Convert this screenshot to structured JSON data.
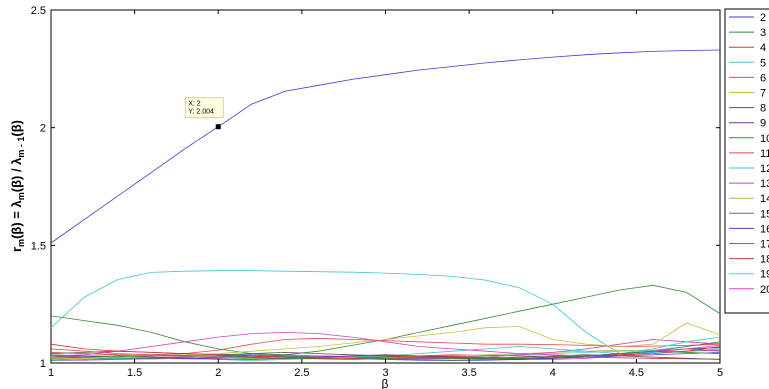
{
  "chart_data": {
    "type": "line",
    "title": "",
    "xlabel": "β",
    "ylabel": {
      "base": "r",
      "sub_m": "m",
      "mid": "(β) = λ",
      "sub_m2": "m",
      "mid2": "(β) / λ",
      "sub_m1": "m - 1",
      "tail": "(β)"
    },
    "xlim": [
      1,
      5
    ],
    "ylim": [
      1,
      2.5
    ],
    "xticks": [
      "1",
      "1.5",
      "2",
      "2.5",
      "3",
      "3.5",
      "4",
      "4.5",
      "5"
    ],
    "yticks": [
      "1",
      "1.5",
      "2",
      "2.5"
    ],
    "grid": false,
    "legend_position": "right",
    "datatip": {
      "x_text": "X: 2",
      "y_text": "Y: 2.004",
      "x": 2,
      "y": 2.004
    },
    "x": [
      1,
      1.2,
      1.4,
      1.6,
      1.8,
      2,
      2.2,
      2.4,
      2.6,
      2.8,
      3,
      3.2,
      3.4,
      3.6,
      3.8,
      4,
      4.2,
      4.4,
      4.6,
      4.8,
      5
    ],
    "series": [
      {
        "name": "2",
        "color": "#3b3bd6",
        "values": [
          1.51,
          1.61,
          1.71,
          1.81,
          1.91,
          2.004,
          2.1,
          2.155,
          2.18,
          2.205,
          2.225,
          2.245,
          2.26,
          2.275,
          2.288,
          2.3,
          2.31,
          2.318,
          2.324,
          2.328,
          2.33
        ]
      },
      {
        "name": "3",
        "color": "#2e8b2e",
        "values": [
          1.035,
          1.03,
          1.028,
          1.03,
          1.032,
          1.03,
          1.025,
          1.02,
          1.018,
          1.015,
          1.02,
          1.022,
          1.02,
          1.018,
          1.02,
          1.025,
          1.03,
          1.04,
          1.05,
          1.045,
          1.04
        ]
      },
      {
        "name": "4",
        "color": "#e03030",
        "values": [
          1.08,
          1.06,
          1.05,
          1.045,
          1.04,
          1.035,
          1.03,
          1.025,
          1.02,
          1.02,
          1.025,
          1.03,
          1.028,
          1.025,
          1.02,
          1.025,
          1.03,
          1.035,
          1.04,
          1.05,
          1.07
        ]
      },
      {
        "name": "5",
        "color": "#3cc6d8",
        "values": [
          1.15,
          1.28,
          1.355,
          1.385,
          1.39,
          1.392,
          1.392,
          1.39,
          1.388,
          1.386,
          1.382,
          1.376,
          1.368,
          1.352,
          1.32,
          1.25,
          1.13,
          1.04,
          1.06,
          1.09,
          1.11
        ]
      },
      {
        "name": "6",
        "color": "#d040c8",
        "values": [
          1.03,
          1.035,
          1.05,
          1.07,
          1.09,
          1.11,
          1.125,
          1.13,
          1.125,
          1.11,
          1.09,
          1.07,
          1.06,
          1.05,
          1.04,
          1.035,
          1.03,
          1.04,
          1.05,
          1.06,
          1.05
        ]
      },
      {
        "name": "7",
        "color": "#c8c040",
        "values": [
          1.02,
          1.02,
          1.025,
          1.03,
          1.035,
          1.04,
          1.05,
          1.06,
          1.07,
          1.085,
          1.1,
          1.115,
          1.13,
          1.15,
          1.155,
          1.1,
          1.08,
          1.07,
          1.08,
          1.17,
          1.12
        ]
      },
      {
        "name": "8",
        "color": "#555555",
        "values": [
          1.04,
          1.045,
          1.05,
          1.045,
          1.04,
          1.035,
          1.04,
          1.045,
          1.04,
          1.035,
          1.03,
          1.028,
          1.025,
          1.02,
          1.025,
          1.03,
          1.035,
          1.03,
          1.025,
          1.02,
          1.015
        ]
      },
      {
        "name": "9",
        "color": "#7030a0",
        "values": [
          1.02,
          1.025,
          1.03,
          1.025,
          1.02,
          1.018,
          1.015,
          1.02,
          1.025,
          1.03,
          1.035,
          1.03,
          1.025,
          1.02,
          1.015,
          1.02,
          1.03,
          1.04,
          1.05,
          1.06,
          1.065
        ]
      },
      {
        "name": "10",
        "color": "#3a8a3a",
        "values": [
          1.2,
          1.18,
          1.16,
          1.13,
          1.09,
          1.06,
          1.04,
          1.035,
          1.05,
          1.075,
          1.1,
          1.13,
          1.16,
          1.19,
          1.22,
          1.25,
          1.28,
          1.31,
          1.33,
          1.3,
          1.21
        ]
      },
      {
        "name": "11",
        "color": "#e84848",
        "values": [
          1.06,
          1.05,
          1.04,
          1.035,
          1.04,
          1.055,
          1.08,
          1.1,
          1.105,
          1.1,
          1.095,
          1.09,
          1.085,
          1.08,
          1.08,
          1.078,
          1.075,
          1.07,
          1.072,
          1.075,
          1.08
        ]
      },
      {
        "name": "12",
        "color": "#40c0d0",
        "values": [
          1.01,
          1.015,
          1.02,
          1.025,
          1.02,
          1.015,
          1.01,
          1.015,
          1.02,
          1.025,
          1.03,
          1.04,
          1.05,
          1.06,
          1.07,
          1.06,
          1.05,
          1.04,
          1.045,
          1.05,
          1.06
        ]
      },
      {
        "name": "13",
        "color": "#c048b8",
        "values": [
          1.025,
          1.03,
          1.028,
          1.024,
          1.02,
          1.025,
          1.03,
          1.035,
          1.03,
          1.025,
          1.02,
          1.018,
          1.02,
          1.025,
          1.035,
          1.045,
          1.06,
          1.08,
          1.1,
          1.09,
          1.08
        ]
      },
      {
        "name": "14",
        "color": "#b8b848",
        "values": [
          1.015,
          1.02,
          1.03,
          1.035,
          1.03,
          1.025,
          1.02,
          1.018,
          1.02,
          1.022,
          1.025,
          1.028,
          1.03,
          1.035,
          1.04,
          1.045,
          1.05,
          1.055,
          1.05,
          1.045,
          1.04
        ]
      },
      {
        "name": "15",
        "color": "#707070",
        "values": [
          1.03,
          1.025,
          1.02,
          1.018,
          1.02,
          1.025,
          1.03,
          1.028,
          1.025,
          1.02,
          1.018,
          1.015,
          1.012,
          1.015,
          1.02,
          1.025,
          1.03,
          1.04,
          1.045,
          1.05,
          1.055
        ]
      },
      {
        "name": "16",
        "color": "#4848e0",
        "values": [
          1.012,
          1.015,
          1.018,
          1.02,
          1.025,
          1.03,
          1.035,
          1.03,
          1.025,
          1.02,
          1.015,
          1.012,
          1.01,
          1.012,
          1.015,
          1.02,
          1.025,
          1.03,
          1.035,
          1.04,
          1.045
        ]
      },
      {
        "name": "17",
        "color": "#2e9a3e",
        "values": [
          1.018,
          1.02,
          1.022,
          1.02,
          1.018,
          1.016,
          1.018,
          1.02,
          1.025,
          1.03,
          1.028,
          1.025,
          1.022,
          1.02,
          1.018,
          1.02,
          1.025,
          1.035,
          1.05,
          1.07,
          1.09
        ]
      },
      {
        "name": "18",
        "color": "#d83838",
        "values": [
          1.045,
          1.04,
          1.035,
          1.03,
          1.028,
          1.025,
          1.022,
          1.02,
          1.02,
          1.022,
          1.025,
          1.03,
          1.035,
          1.032,
          1.03,
          1.028,
          1.025,
          1.022,
          1.02,
          1.018,
          1.016
        ]
      },
      {
        "name": "19",
        "color": "#48d0e0",
        "values": [
          1.022,
          1.025,
          1.03,
          1.035,
          1.04,
          1.038,
          1.035,
          1.03,
          1.025,
          1.022,
          1.02,
          1.022,
          1.025,
          1.03,
          1.035,
          1.04,
          1.045,
          1.05,
          1.055,
          1.07,
          1.085
        ]
      },
      {
        "name": "20",
        "color": "#e040d0",
        "values": [
          1.01,
          1.012,
          1.015,
          1.018,
          1.02,
          1.022,
          1.025,
          1.028,
          1.03,
          1.028,
          1.025,
          1.022,
          1.02,
          1.018,
          1.016,
          1.015,
          1.02,
          1.03,
          1.045,
          1.06,
          1.075
        ]
      }
    ]
  }
}
